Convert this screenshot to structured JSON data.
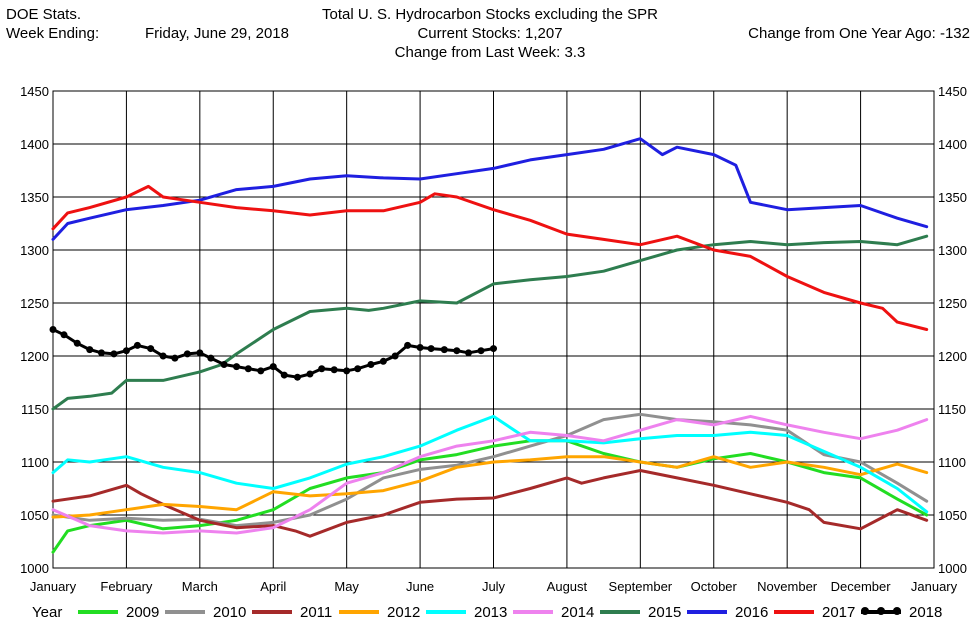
{
  "header": {
    "source": "DOE Stats.",
    "title": "Total U. S. Hydrocarbon Stocks excluding the SPR",
    "week_label": "Week Ending:",
    "week_date": "Friday, June 29, 2018",
    "current_stocks": "Current Stocks:  1,207",
    "change_year": "Change from One Year Ago:  -132",
    "change_week": "Change from Last Week:  3.3"
  },
  "chart_data": {
    "type": "line",
    "title": "Total U. S. Hydrocarbon Stocks excluding the SPR",
    "ylim": [
      1000,
      1450
    ],
    "yticks": [
      1000,
      1050,
      1100,
      1150,
      1200,
      1250,
      1300,
      1350,
      1400,
      1450
    ],
    "xlim": [
      0,
      12
    ],
    "xticks": [
      "January",
      "February",
      "March",
      "April",
      "May",
      "June",
      "July",
      "August",
      "September",
      "October",
      "November",
      "December",
      "January"
    ],
    "grid": true,
    "legend_position": "bottom",
    "legend_title": "Year",
    "series": [
      {
        "name": "2009",
        "color": "#22dd22",
        "x": [
          0,
          0.2,
          0.5,
          1,
          1.5,
          2,
          2.5,
          3,
          3.5,
          4,
          4.5,
          5,
          5.5,
          6,
          6.5,
          7,
          7.5,
          8,
          8.5,
          9,
          9.5,
          10,
          10.5,
          11,
          11.5,
          11.9
        ],
        "y": [
          1015,
          1035,
          1040,
          1045,
          1037,
          1040,
          1045,
          1055,
          1075,
          1085,
          1090,
          1102,
          1107,
          1115,
          1120,
          1120,
          1108,
          1100,
          1095,
          1103,
          1108,
          1100,
          1090,
          1085,
          1065,
          1050
        ]
      },
      {
        "name": "2010",
        "color": "#909090",
        "x": [
          0,
          0.5,
          1,
          1.5,
          2,
          2.5,
          3,
          3.5,
          4,
          4.5,
          5,
          5.5,
          6,
          6.5,
          7,
          7.5,
          8,
          8.5,
          9,
          9.5,
          10,
          10.5,
          11,
          11.5,
          11.9
        ],
        "y": [
          1050,
          1045,
          1047,
          1045,
          1046,
          1040,
          1043,
          1050,
          1065,
          1085,
          1093,
          1097,
          1105,
          1115,
          1125,
          1140,
          1145,
          1140,
          1138,
          1135,
          1130,
          1107,
          1100,
          1080,
          1063
        ]
      },
      {
        "name": "2011",
        "color": "#a52a2a",
        "x": [
          0,
          0.5,
          1,
          1.2,
          1.5,
          2,
          2.5,
          3,
          3.3,
          3.5,
          4,
          4.5,
          5,
          5.5,
          6,
          6.5,
          7,
          7.2,
          7.5,
          8,
          8.5,
          9,
          9.5,
          10,
          10.3,
          10.5,
          11,
          11.5,
          11.9
        ],
        "y": [
          1063,
          1068,
          1078,
          1070,
          1060,
          1045,
          1038,
          1040,
          1035,
          1030,
          1043,
          1050,
          1062,
          1065,
          1066,
          1075,
          1085,
          1080,
          1085,
          1092,
          1085,
          1078,
          1070,
          1062,
          1055,
          1043,
          1037,
          1055,
          1045
        ]
      },
      {
        "name": "2012",
        "color": "#ffa500",
        "x": [
          0,
          0.5,
          1,
          1.5,
          2,
          2.5,
          3,
          3.5,
          4,
          4.5,
          5,
          5.5,
          6,
          6.5,
          7,
          7.5,
          8,
          8.5,
          9,
          9.5,
          10,
          10.5,
          11,
          11.5,
          11.9
        ],
        "y": [
          1048,
          1050,
          1055,
          1060,
          1058,
          1055,
          1072,
          1068,
          1070,
          1073,
          1082,
          1095,
          1100,
          1102,
          1105,
          1105,
          1100,
          1095,
          1105,
          1095,
          1100,
          1095,
          1088,
          1098,
          1090
        ]
      },
      {
        "name": "2013",
        "color": "#00ffff",
        "x": [
          0,
          0.2,
          0.5,
          1,
          1.5,
          2,
          2.5,
          3,
          3.5,
          4,
          4.5,
          5,
          5.5,
          6,
          6.5,
          7,
          7.5,
          8,
          8.5,
          9,
          9.5,
          10,
          10.5,
          11,
          11.5,
          11.9
        ],
        "y": [
          1090,
          1102,
          1100,
          1105,
          1095,
          1090,
          1080,
          1075,
          1085,
          1098,
          1105,
          1115,
          1130,
          1143,
          1120,
          1120,
          1118,
          1122,
          1125,
          1125,
          1128,
          1125,
          1110,
          1095,
          1075,
          1053
        ]
      },
      {
        "name": "2014",
        "color": "#ee82ee",
        "x": [
          0,
          0.5,
          1,
          1.5,
          2,
          2.5,
          3,
          3.5,
          4,
          4.5,
          5,
          5.5,
          6,
          6.5,
          7,
          7.5,
          8,
          8.5,
          9,
          9.5,
          10,
          10.5,
          11,
          11.5,
          11.9
        ],
        "y": [
          1055,
          1040,
          1035,
          1033,
          1035,
          1033,
          1038,
          1055,
          1080,
          1090,
          1105,
          1115,
          1120,
          1128,
          1125,
          1120,
          1130,
          1140,
          1135,
          1143,
          1135,
          1128,
          1122,
          1130,
          1140
        ]
      },
      {
        "name": "2015",
        "color": "#2e7d4f",
        "x": [
          0,
          0.2,
          0.5,
          0.8,
          1,
          1.5,
          2,
          2.3,
          2.5,
          3,
          3.5,
          4,
          4.3,
          4.5,
          5,
          5.5,
          6,
          6.5,
          7,
          7.5,
          8,
          8.5,
          9,
          9.5,
          10,
          10.5,
          11,
          11.5,
          11.9
        ],
        "y": [
          1150,
          1160,
          1162,
          1165,
          1177,
          1177,
          1185,
          1192,
          1202,
          1225,
          1242,
          1245,
          1243,
          1245,
          1252,
          1250,
          1268,
          1272,
          1275,
          1280,
          1290,
          1300,
          1305,
          1308,
          1305,
          1307,
          1308,
          1305,
          1313
        ]
      },
      {
        "name": "2016",
        "color": "#1f1fe0",
        "x": [
          0,
          0.2,
          0.5,
          1,
          1.5,
          2,
          2.5,
          3,
          3.5,
          4,
          4.5,
          5,
          5.5,
          6,
          6.5,
          7,
          7.5,
          8,
          8.3,
          8.5,
          9,
          9.3,
          9.5,
          10,
          10.5,
          11,
          11.5,
          11.9
        ],
        "y": [
          1310,
          1325,
          1330,
          1338,
          1342,
          1347,
          1357,
          1360,
          1367,
          1370,
          1368,
          1367,
          1372,
          1377,
          1385,
          1390,
          1395,
          1405,
          1390,
          1397,
          1390,
          1380,
          1345,
          1338,
          1340,
          1342,
          1330,
          1322
        ]
      },
      {
        "name": "2017",
        "color": "#ee1111",
        "x": [
          0,
          0.2,
          0.5,
          1,
          1.3,
          1.5,
          2,
          2.5,
          3,
          3.5,
          4,
          4.5,
          5,
          5.2,
          5.5,
          6,
          6.5,
          7,
          7.5,
          8,
          8.5,
          9,
          9.5,
          10,
          10.5,
          11,
          11.3,
          11.5,
          11.9
        ],
        "y": [
          1320,
          1335,
          1340,
          1350,
          1360,
          1350,
          1345,
          1340,
          1337,
          1333,
          1337,
          1337,
          1345,
          1353,
          1350,
          1338,
          1328,
          1315,
          1310,
          1305,
          1313,
          1300,
          1294,
          1275,
          1260,
          1250,
          1245,
          1232,
          1225
        ]
      },
      {
        "name": "2018",
        "color": "#000000",
        "markers": true,
        "x": [
          0,
          0.15,
          0.33,
          0.5,
          0.66,
          0.83,
          1,
          1.15,
          1.33,
          1.5,
          1.66,
          1.83,
          2,
          2.15,
          2.33,
          2.5,
          2.66,
          2.83,
          3,
          3.15,
          3.33,
          3.5,
          3.66,
          3.83,
          4,
          4.15,
          4.33,
          4.5,
          4.66,
          4.83,
          5,
          5.15,
          5.33,
          5.5,
          5.66,
          5.83,
          6
        ],
        "y": [
          1225,
          1220,
          1212,
          1206,
          1203,
          1202,
          1205,
          1210,
          1207,
          1200,
          1198,
          1202,
          1203,
          1198,
          1192,
          1190,
          1188,
          1186,
          1190,
          1182,
          1180,
          1183,
          1188,
          1187,
          1186,
          1188,
          1192,
          1195,
          1200,
          1210,
          1208,
          1207,
          1206,
          1205,
          1203,
          1205,
          1207
        ]
      }
    ]
  }
}
